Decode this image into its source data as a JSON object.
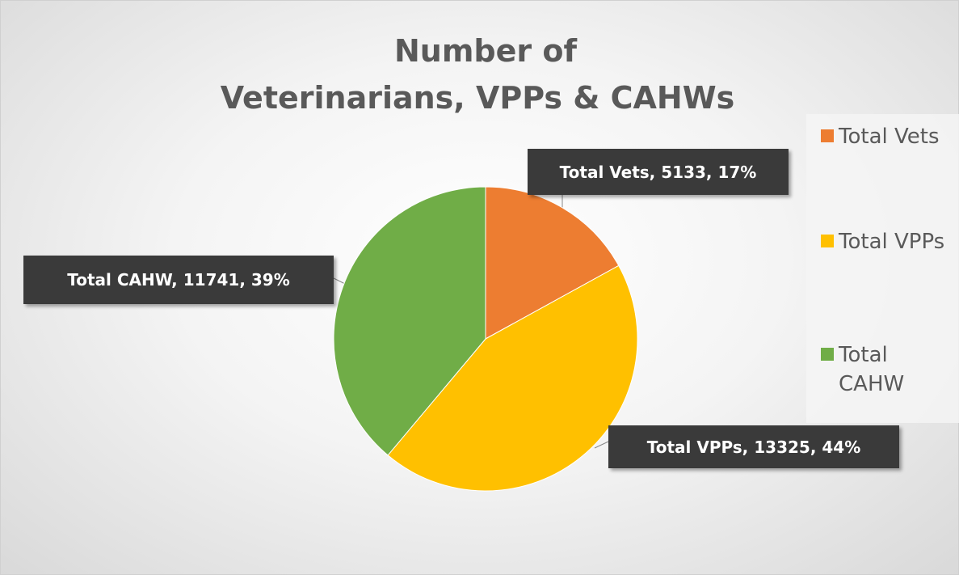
{
  "chart_data": {
    "type": "pie",
    "title": [
      "Number of",
      "Veterinarians, VPPs & CAHWs"
    ],
    "categories": [
      "Total Vets",
      "Total VPPs",
      "Total CAHW"
    ],
    "values": [
      5133,
      13325,
      11741
    ],
    "value_labels": [
      "Total Vets, 5133, 17%",
      "Total VPPs, 13325, 44%",
      "Total CAHW, 11741, 39%"
    ],
    "colors": [
      "#ED7D31",
      "#FFC000",
      "#70AD47"
    ],
    "legend": "right"
  }
}
